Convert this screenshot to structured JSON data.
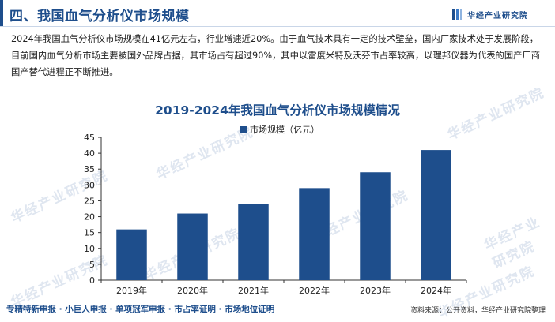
{
  "header": {
    "title": "四、我国血气分析仪市场规模",
    "brand": "华经产业研究院"
  },
  "paragraph": "2024年我国血气分析仪市场规模在41亿元左右，行业增速近20%。由于血气技术具有一定的技术壁垒，国内厂家技术处于发展阶段，目前国内血气分析市场主要被国外品牌占据，其市场占有超过90%，其中以雷度米特及沃芬市占率较高，以理邦仪器为代表的国产厂商国产替代进程正不断推进。",
  "watermark": "华经产业研究院",
  "chart_data": {
    "type": "bar",
    "title": "2019-2024年我国血气分析仪市场规模情况",
    "categories": [
      "2019年",
      "2020年",
      "2021年",
      "2022年",
      "2023年",
      "2024年"
    ],
    "series": [
      {
        "name": "市场规模（亿元）",
        "values": [
          16,
          21,
          24,
          29,
          34,
          41
        ]
      }
    ],
    "ylim": [
      0,
      45
    ],
    "yticks": [
      0,
      5,
      10,
      15,
      20,
      25,
      30,
      35,
      40,
      45
    ],
    "grid": false,
    "legend_position": "top-center",
    "color": "#1e4e8c"
  },
  "footer": {
    "left": "专精特新申报 · 小巨人申报 · 单项冠军申报 · 市占率证明 · 市场地位证明",
    "right": "资料来源：公开资料，华经产业研究院整理"
  }
}
